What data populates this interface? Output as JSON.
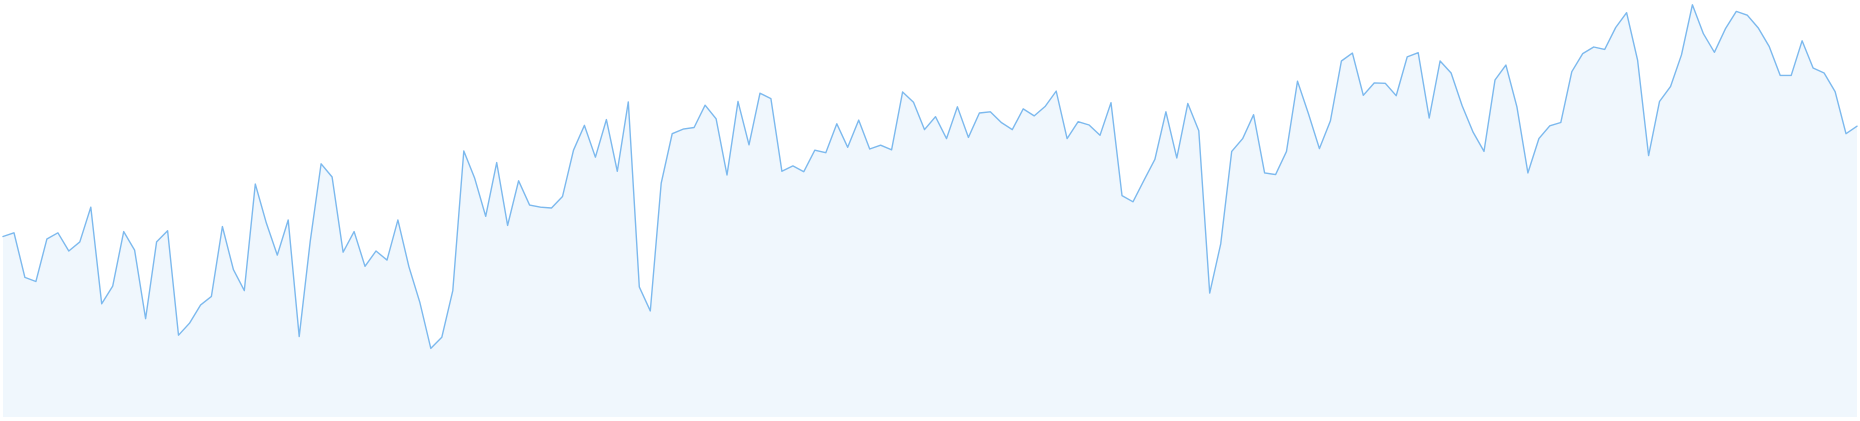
{
  "chart_data": {
    "type": "area",
    "title": "",
    "xlabel": "",
    "ylabel": "",
    "grid": false,
    "legend": "none",
    "x_range": [
      0,
      152
    ],
    "ylim": [
      0,
      100
    ],
    "colors": {
      "line": "#7cb9ee",
      "fill": "#f0f7fd"
    },
    "values": [
      43.7,
      44.6,
      33.8,
      32.8,
      43.1,
      44.6,
      40.2,
      42.4,
      50.8,
      27.4,
      31.7,
      44.9,
      40.4,
      23.8,
      42.4,
      45.1,
      19.8,
      22.7,
      27.1,
      29.2,
      46.1,
      35.7,
      30.6,
      56.4,
      47.0,
      39.2,
      47.7,
      19.5,
      42.5,
      61.3,
      58.1,
      39.9,
      44.9,
      36.5,
      40.2,
      38.0,
      47.7,
      36.4,
      27.7,
      16.6,
      19.3,
      30.6,
      64.4,
      57.8,
      48.6,
      61.6,
      46.4,
      57.2,
      51.3,
      50.8,
      50.6,
      53.4,
      64.6,
      70.6,
      62.9,
      72.0,
      59.5,
      76.3,
      31.5,
      25.7,
      56.6,
      68.6,
      69.7,
      70.1,
      75.5,
      72.2,
      58.6,
      76.4,
      65.9,
      78.4,
      77.1,
      59.5,
      60.8,
      59.4,
      64.6,
      64.0,
      71.0,
      65.3,
      71.9,
      64.9,
      65.8,
      64.7,
      78.7,
      76.2,
      69.6,
      72.7,
      67.4,
      75.1,
      67.7,
      73.6,
      73.9,
      71.3,
      69.6,
      74.6,
      72.9,
      75.2,
      78.9,
      67.4,
      71.5,
      70.7,
      68.2,
      76.1,
      53.6,
      52.1,
      57.3,
      62.4,
      73.9,
      62.7,
      75.9,
      69.3,
      30.0,
      41.9,
      64.3,
      67.4,
      73.2,
      59.1,
      58.7,
      64.3,
      81.3,
      73.4,
      65.0,
      71.7,
      86.2,
      88.1,
      77.9,
      80.9,
      80.8,
      77.8,
      87.2,
      88.2,
      72.4,
      86.2,
      83.3,
      75.4,
      69.0,
      64.3,
      81.6,
      85.2,
      75.1,
      59.1,
      67.4,
      70.5,
      71.3,
      83.6,
      88.0,
      89.6,
      89.0,
      94.3,
      97.9,
      86.4,
      63.3,
      76.4,
      80.0,
      87.7,
      99.8,
      92.8,
      88.3,
      94.0,
      98.2,
      97.3,
      94.2,
      89.7,
      82.7,
      82.7,
      91.1,
      84.5,
      83.3,
      78.8,
      68.6,
      70.4
    ]
  }
}
